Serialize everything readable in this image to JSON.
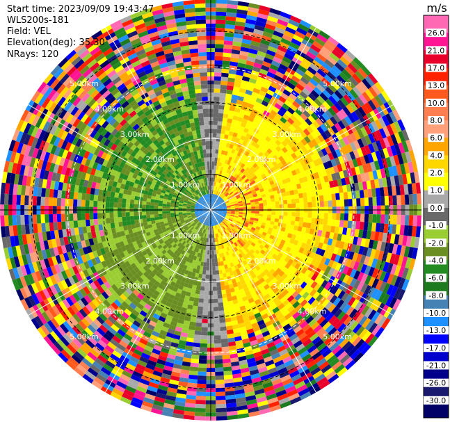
{
  "header": {
    "start_time": "Start time: 2023/09/09 19:43:47",
    "instrument": "WLS200s-181",
    "field": "Field: VEL",
    "elevation": "Elevation(deg): 35.30",
    "nrays": "NRays: 120"
  },
  "chart_data": {
    "type": "heatmap",
    "projection": "polar",
    "n_rays": 120,
    "max_range_km": 6,
    "grid": true,
    "range_ring_labels": [
      "1.00km",
      "2.00km",
      "3.00km",
      "4.00km",
      "5.00km"
    ],
    "ring_label_angles_deg": [
      45,
      135,
      225,
      315
    ],
    "colorbar": {
      "unit": "m/s",
      "placement": "right",
      "ticks": [
        "26.0",
        "21.0",
        "17.0",
        "13.0",
        "10.0",
        "8.0",
        "6.0",
        "4.0",
        "2.0",
        "1.0",
        "0.0",
        "-1.0",
        "-2.0",
        "-4.0",
        "-6.0",
        "-8.0",
        "-10.0",
        "-13.0",
        "-17.0",
        "-21.0",
        "-26.0",
        "-30.0"
      ],
      "colors": [
        "#ff69b4",
        "#ff1493",
        "#e8002b",
        "#ff2200",
        "#ff5a1e",
        "#ff7f50",
        "#ffa07a",
        "#ffa500",
        "#ffd700",
        "#ffff00",
        "#a9a9a9",
        "#696969",
        "#9acd32",
        "#6b8e23",
        "#228b22",
        "#1e7a1e",
        "#4682b4",
        "#1e90ff",
        "#0000ff",
        "#0000cd",
        "#00008b",
        "#191970",
        "#000066"
      ]
    }
  }
}
